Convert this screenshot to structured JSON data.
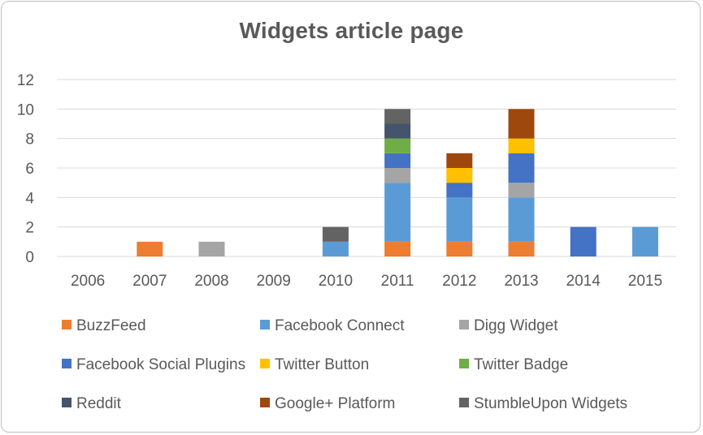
{
  "chart_data": {
    "type": "bar",
    "stacked": true,
    "title": "Widgets article page",
    "xlabel": "",
    "ylabel": "",
    "ylim": [
      0,
      12
    ],
    "yticks": [
      0,
      2,
      4,
      6,
      8,
      10,
      12
    ],
    "grid": true,
    "legend_position": "bottom",
    "categories": [
      "2006",
      "2007",
      "2008",
      "2009",
      "2010",
      "2011",
      "2012",
      "2013",
      "2014",
      "2015"
    ],
    "series": [
      {
        "name": "BuzzFeed",
        "color": "#ed7d31",
        "values": [
          0,
          1,
          0,
          0,
          0,
          1,
          1,
          1,
          0,
          0
        ]
      },
      {
        "name": "Facebook Connect",
        "color": "#5b9bd5",
        "values": [
          0,
          0,
          0,
          0,
          1,
          4,
          3,
          3,
          0,
          2
        ]
      },
      {
        "name": "Digg Widget",
        "color": "#a5a5a5",
        "values": [
          0,
          0,
          1,
          0,
          0,
          1,
          0,
          1,
          0,
          0
        ]
      },
      {
        "name": "Facebook Social Plugins",
        "color": "#4472c4",
        "values": [
          0,
          0,
          0,
          0,
          0,
          1,
          1,
          2,
          2,
          0
        ]
      },
      {
        "name": "Twitter Button",
        "color": "#ffc000",
        "values": [
          0,
          0,
          0,
          0,
          0,
          0,
          1,
          1,
          0,
          0
        ]
      },
      {
        "name": "Twitter Badge",
        "color": "#70ad47",
        "values": [
          0,
          0,
          0,
          0,
          0,
          1,
          0,
          0,
          0,
          0
        ]
      },
      {
        "name": "Reddit",
        "color": "#44546a",
        "values": [
          0,
          0,
          0,
          0,
          0,
          1,
          0,
          0,
          0,
          0
        ]
      },
      {
        "name": "Google+ Platform",
        "color": "#9e480e",
        "values": [
          0,
          0,
          0,
          0,
          0,
          0,
          1,
          2,
          0,
          0
        ]
      },
      {
        "name": "StumbleUpon Widgets",
        "color": "#636363",
        "values": [
          0,
          0,
          0,
          0,
          1,
          1,
          0,
          0,
          0,
          0
        ]
      }
    ]
  }
}
